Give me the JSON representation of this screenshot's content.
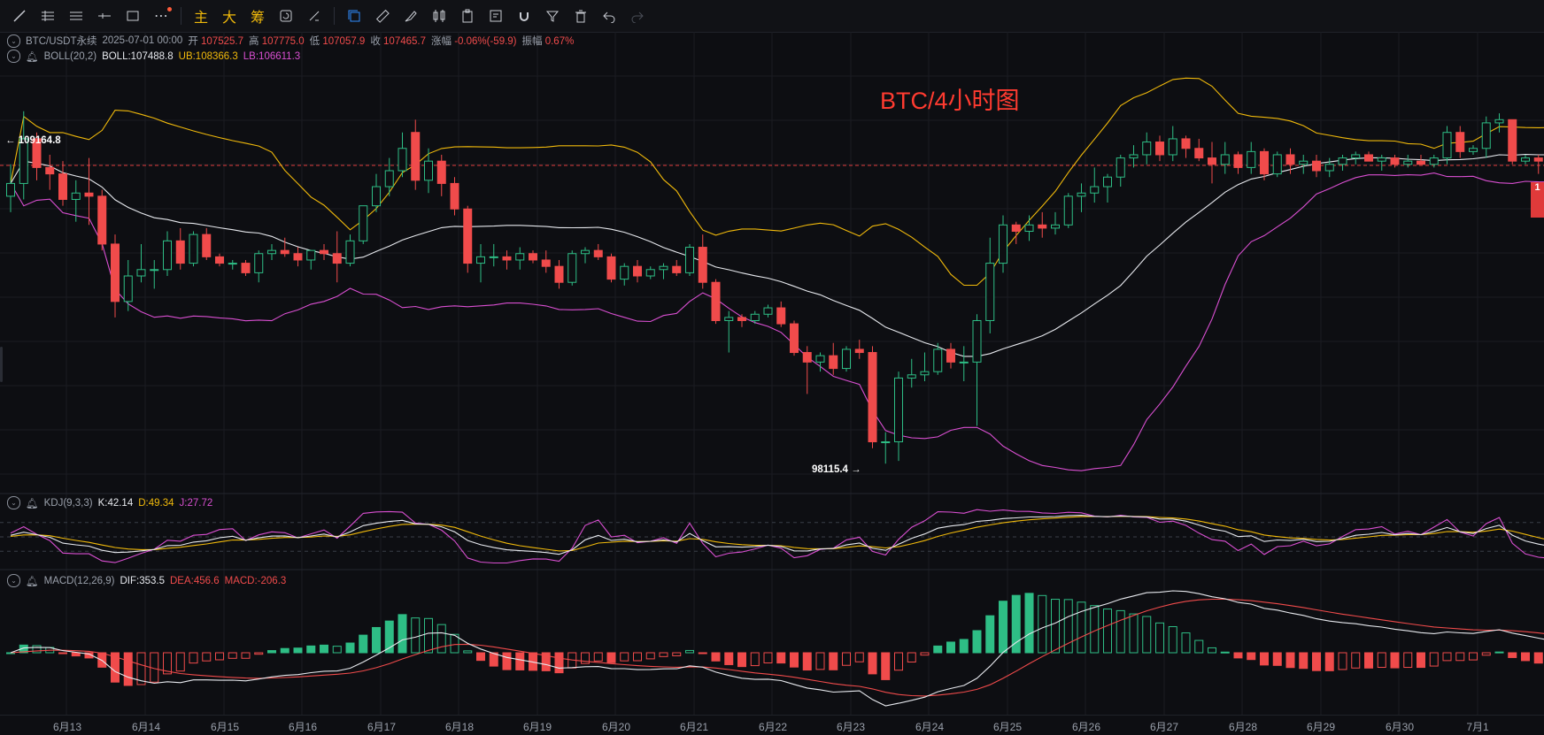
{
  "toolbar": {
    "text_buttons": [
      "主",
      "大",
      "筹"
    ],
    "left_icons": [
      "line-tool-icon",
      "parallel-lines-icon",
      "horizontal-lines-icon",
      "horizontal-ray-icon",
      "rectangle-icon",
      "more-tools-icon"
    ],
    "right_icons": [
      "copy-icon",
      "ruler-icon",
      "brush-icon",
      "candle-style-icon",
      "clipboard-icon",
      "note-icon",
      "magnet-icon",
      "filter-icon",
      "trash-icon",
      "undo-icon",
      "redo-icon"
    ]
  },
  "main": {
    "symbol": "BTC/USDT永续",
    "datetime": "2025-07-01 00:00",
    "open_label": "开",
    "open": "107525.7",
    "high_label": "高",
    "high": "107775.0",
    "low_label": "低",
    "low": "107057.9",
    "close_label": "收",
    "close": "107465.7",
    "change_label": "涨幅",
    "change": "-0.06%(-59.9)",
    "amp_label": "振幅",
    "amp": "0.67%"
  },
  "boll": {
    "name": "BOLL(20,2)",
    "mid": "BOLL:107488.8",
    "ub": "UB:108366.3",
    "lb": "LB:106611.3"
  },
  "kdj": {
    "name": "KDJ(9,3,3)",
    "k": "K:42.14",
    "d": "D:49.34",
    "j": "J:27.72"
  },
  "macd": {
    "name": "MACD(12,26,9)",
    "dif": "DIF:353.5",
    "dea": "DEA:456.6",
    "macd": "MACD:-206.3"
  },
  "overlay_title": "BTC/4小时图",
  "high_marker": "109164.8",
  "low_marker": "98115.4",
  "right_tag": "1",
  "x_axis": [
    "6月13",
    "6月14",
    "6月15",
    "6月16",
    "6月17",
    "6月18",
    "6月19",
    "6月20",
    "6月21",
    "6月22",
    "6月23",
    "6月24",
    "6月25",
    "6月26",
    "6月27",
    "6月28",
    "6月29",
    "6月30",
    "7月1"
  ],
  "colors": {
    "up": "#2ebd85",
    "down": "#f04b4b",
    "ub": "#f0b90b",
    "mid": "#e7e9ee",
    "lb": "#d94fd1",
    "title": "#ff3b30"
  },
  "chart_data": {
    "type": "candlestick",
    "start_time": "2025-06-13 00:00",
    "interval": "4h",
    "ohlc": [
      [
        106500,
        107500,
        106000,
        106900
      ],
      [
        106900,
        109164.8,
        106400,
        108300
      ],
      [
        108300,
        108500,
        107000,
        107400
      ],
      [
        107400,
        107800,
        106700,
        107200
      ],
      [
        107200,
        107600,
        106200,
        106400
      ],
      [
        106400,
        107000,
        105700,
        106600
      ],
      [
        106600,
        107700,
        105600,
        106500
      ],
      [
        106500,
        106700,
        104800,
        105000
      ],
      [
        105000,
        105300,
        102700,
        103200
      ],
      [
        103200,
        104500,
        102900,
        104000
      ],
      [
        104000,
        105000,
        103800,
        104200
      ],
      [
        104200,
        104500,
        103600,
        104200
      ],
      [
        104200,
        105400,
        104000,
        105100
      ],
      [
        105100,
        105500,
        104200,
        104400
      ],
      [
        104400,
        105400,
        104300,
        105300
      ],
      [
        105300,
        105500,
        104500,
        104600
      ],
      [
        104600,
        104700,
        104300,
        104400
      ],
      [
        104400,
        104500,
        104200,
        104400
      ],
      [
        104400,
        104500,
        104000,
        104100
      ],
      [
        104100,
        104800,
        103800,
        104700
      ],
      [
        104700,
        105000,
        104500,
        104800
      ],
      [
        104800,
        105200,
        104600,
        104700
      ],
      [
        104700,
        104900,
        104300,
        104500
      ],
      [
        104500,
        104800,
        104200,
        104800
      ],
      [
        104800,
        105000,
        104500,
        104700
      ],
      [
        104700,
        105400,
        103800,
        104400
      ],
      [
        104400,
        105300,
        104300,
        105100
      ],
      [
        105100,
        106200,
        105000,
        106200
      ],
      [
        106200,
        107200,
        106000,
        106800
      ],
      [
        106800,
        107700,
        106500,
        107300
      ],
      [
        107300,
        108500,
        107100,
        108000
      ],
      [
        108500,
        108900,
        106700,
        107000
      ],
      [
        107000,
        108000,
        106600,
        107600
      ],
      [
        107600,
        107800,
        106500,
        106900
      ],
      [
        106900,
        107100,
        105900,
        106100
      ],
      [
        106100,
        106200,
        104100,
        104400
      ],
      [
        104400,
        105000,
        103800,
        104600
      ],
      [
        104600,
        105000,
        104300,
        104600
      ],
      [
        104600,
        104800,
        104200,
        104500
      ],
      [
        104500,
        104900,
        104200,
        104700
      ],
      [
        104700,
        104800,
        104400,
        104500
      ],
      [
        104500,
        104800,
        104100,
        104300
      ],
      [
        104300,
        104500,
        103600,
        103800
      ],
      [
        103800,
        104800,
        103700,
        104700
      ],
      [
        104700,
        104900,
        104400,
        104800
      ],
      [
        104800,
        105000,
        104500,
        104600
      ],
      [
        104600,
        104700,
        103800,
        103900
      ],
      [
        103900,
        104400,
        103700,
        104300
      ],
      [
        104300,
        104500,
        103800,
        104000
      ],
      [
        104000,
        104300,
        103900,
        104200
      ],
      [
        104200,
        104400,
        103900,
        104300
      ],
      [
        104300,
        104500,
        104000,
        104100
      ],
      [
        104100,
        105000,
        104000,
        104900
      ],
      [
        104900,
        105300,
        103600,
        103800
      ],
      [
        103800,
        103900,
        102500,
        102600
      ],
      [
        102600,
        102900,
        101600,
        102700
      ],
      [
        102700,
        102800,
        102400,
        102600
      ],
      [
        102600,
        102900,
        102500,
        102800
      ],
      [
        102800,
        103100,
        102700,
        103000
      ],
      [
        103000,
        103200,
        102400,
        102500
      ],
      [
        102500,
        102600,
        101500,
        101600
      ],
      [
        101600,
        101800,
        100300,
        101300
      ],
      [
        101300,
        101600,
        101000,
        101500
      ],
      [
        101500,
        101900,
        100900,
        101100
      ],
      [
        101100,
        101800,
        101000,
        101700
      ],
      [
        101700,
        102000,
        101400,
        101600
      ],
      [
        101600,
        101800,
        98600,
        98800
      ],
      [
        98800,
        99100,
        98115.4,
        98800
      ],
      [
        98800,
        101000,
        98200,
        100800
      ],
      [
        100800,
        101400,
        100500,
        100900
      ],
      [
        100900,
        101600,
        100700,
        101000
      ],
      [
        101000,
        101900,
        100900,
        101700
      ],
      [
        101700,
        101900,
        101100,
        101300
      ],
      [
        101300,
        101800,
        100700,
        101300
      ],
      [
        101300,
        102800,
        99300,
        102600
      ],
      [
        102600,
        105200,
        102200,
        104400
      ],
      [
        104400,
        105900,
        104100,
        105600
      ],
      [
        105600,
        105700,
        105000,
        105400
      ],
      [
        105400,
        105900,
        105100,
        105600
      ],
      [
        105600,
        106000,
        105200,
        105500
      ],
      [
        105500,
        106000,
        105300,
        105600
      ],
      [
        105600,
        106600,
        105500,
        106500
      ],
      [
        106500,
        106900,
        106000,
        106600
      ],
      [
        106600,
        107400,
        106300,
        106800
      ],
      [
        106800,
        107200,
        106300,
        107100
      ],
      [
        107100,
        107800,
        106800,
        107700
      ],
      [
        107700,
        108100,
        107400,
        107800
      ],
      [
        107800,
        108500,
        107500,
        108200
      ],
      [
        108200,
        108400,
        107600,
        107800
      ],
      [
        107800,
        108700,
        107600,
        108300
      ],
      [
        108300,
        108400,
        107700,
        108000
      ],
      [
        108000,
        108300,
        107600,
        107700
      ],
      [
        107700,
        108200,
        106900,
        107500
      ],
      [
        107500,
        108200,
        107200,
        107800
      ],
      [
        107800,
        107900,
        107200,
        107400
      ],
      [
        107400,
        108200,
        107200,
        107900
      ],
      [
        107900,
        108000,
        107000,
        107200
      ],
      [
        107200,
        107900,
        107100,
        107800
      ],
      [
        107800,
        108000,
        107200,
        107500
      ],
      [
        107500,
        107800,
        107200,
        107600
      ],
      [
        107600,
        107800,
        107100,
        107300
      ],
      [
        107300,
        107700,
        107100,
        107500
      ],
      [
        107500,
        107800,
        107300,
        107700
      ],
      [
        107700,
        107900,
        107500,
        107800
      ],
      [
        107800,
        107900,
        107600,
        107600
      ],
      [
        107600,
        107800,
        107300,
        107700
      ],
      [
        107700,
        107800,
        107400,
        107500
      ],
      [
        107500,
        107800,
        107400,
        107600
      ],
      [
        107600,
        107800,
        107500,
        107500
      ],
      [
        107500,
        107800,
        107400,
        107700
      ],
      [
        107700,
        108700,
        107500,
        108500
      ],
      [
        108500,
        108700,
        107700,
        107900
      ],
      [
        107900,
        108100,
        107800,
        108000
      ],
      [
        108000,
        109000,
        107700,
        108800
      ],
      [
        108800,
        109100,
        108500,
        108900
      ],
      [
        108900,
        108900,
        107500,
        107600
      ],
      [
        107600,
        107800,
        107500,
        107700
      ],
      [
        107700,
        107800,
        107200,
        107600
      ],
      [
        107525.7,
        107775.0,
        107057.9,
        107465.7
      ]
    ]
  }
}
